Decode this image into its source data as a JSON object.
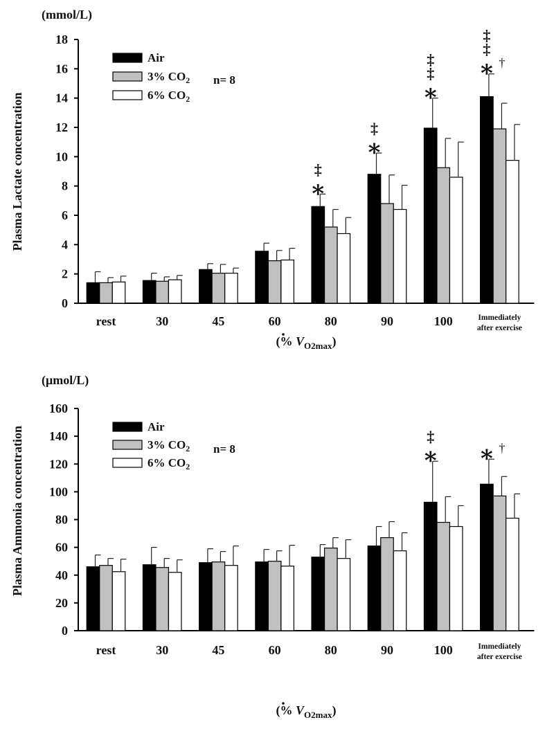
{
  "colors": {
    "air": "#000000",
    "co2_3": "#c0c0c0",
    "co2_6": "#ffffff",
    "axis": "#000000"
  },
  "chart_data": [
    {
      "type": "bar",
      "unit_label": "(mmol/L)",
      "ylabel": "Plasma Lactate concentration",
      "xlabel_prefix": "(% ",
      "xlabel_v": "V",
      "xlabel_sub": "O2max",
      "xlabel_suffix": ")",
      "categories": [
        "rest",
        "30",
        "45",
        "60",
        "80",
        "90",
        "100",
        "Immediately after exercise"
      ],
      "category_lines": [
        [
          "rest"
        ],
        [
          "30"
        ],
        [
          "45"
        ],
        [
          "60"
        ],
        [
          "80"
        ],
        [
          "90"
        ],
        [
          "100"
        ],
        [
          "Immediately",
          "after exercise"
        ]
      ],
      "ylim": [
        0,
        18
      ],
      "yticks": [
        "0",
        "2",
        "4",
        "6",
        "8",
        "10",
        "12",
        "14",
        "16",
        "18"
      ],
      "n_label": "n= 8",
      "series": [
        {
          "name": "Air",
          "legend_main": "Air",
          "legend_sub": "",
          "values": [
            1.4,
            1.55,
            2.3,
            3.55,
            6.6,
            8.8,
            11.95,
            14.1
          ],
          "errors": [
            0.75,
            0.5,
            0.4,
            0.55,
            0.85,
            1.45,
            2.05,
            1.55
          ]
        },
        {
          "name": "3% CO2",
          "legend_main": "3% CO",
          "legend_sub": "2",
          "values": [
            1.4,
            1.5,
            2.05,
            2.9,
            5.2,
            6.8,
            9.25,
            11.9
          ],
          "errors": [
            0.35,
            0.3,
            0.6,
            0.7,
            1.2,
            1.95,
            2.0,
            1.75
          ]
        },
        {
          "name": "6% CO2",
          "legend_main": "6% CO",
          "legend_sub": "2",
          "values": [
            1.45,
            1.6,
            2.05,
            2.95,
            4.75,
            6.4,
            8.6,
            9.75
          ],
          "errors": [
            0.4,
            0.3,
            0.35,
            0.8,
            1.1,
            1.65,
            2.4,
            2.45
          ]
        }
      ],
      "annotations": [
        {
          "category": "80",
          "series": "Air",
          "lines": [
            "‡",
            "∗"
          ]
        },
        {
          "category": "90",
          "series": "Air",
          "lines": [
            "‡",
            "∗"
          ]
        },
        {
          "category": "100",
          "series": "Air",
          "lines": [
            "‡",
            "‡",
            "∗"
          ]
        },
        {
          "category": "Immediately after exercise",
          "series": "Air",
          "lines": [
            "‡",
            "‡",
            "∗"
          ],
          "extra": "†"
        }
      ]
    },
    {
      "type": "bar",
      "unit_label": "(μmol/L)",
      "ylabel": "Plasma Ammonia concentration",
      "xlabel_prefix": "(% ",
      "xlabel_v": "V",
      "xlabel_sub": "O2max",
      "xlabel_suffix": ")",
      "categories": [
        "rest",
        "30",
        "45",
        "60",
        "80",
        "90",
        "100",
        "Immediately after exercise"
      ],
      "category_lines": [
        [
          "rest"
        ],
        [
          "30"
        ],
        [
          "45"
        ],
        [
          "60"
        ],
        [
          "80"
        ],
        [
          "90"
        ],
        [
          "100"
        ],
        [
          "Immediately",
          "after exercise"
        ]
      ],
      "ylim": [
        0,
        160
      ],
      "yticks": [
        "0",
        "20",
        "40",
        "60",
        "80",
        "100",
        "120",
        "140",
        "160"
      ],
      "n_label": "n= 8",
      "series": [
        {
          "name": "Air",
          "legend_main": "Air",
          "legend_sub": "",
          "values": [
            46,
            47.5,
            49,
            49.5,
            53,
            61,
            92.5,
            105.5
          ],
          "errors": [
            8.5,
            12.5,
            10,
            9,
            9,
            14,
            29.5,
            18
          ]
        },
        {
          "name": "3% CO2",
          "legend_main": "3% CO",
          "legend_sub": "2",
          "values": [
            47,
            45.5,
            49.5,
            50,
            59.5,
            67,
            78,
            97
          ],
          "errors": [
            5,
            6.5,
            7.5,
            7.5,
            7.5,
            11.5,
            18.5,
            14
          ]
        },
        {
          "name": "6% CO2",
          "legend_main": "6% CO",
          "legend_sub": "2",
          "values": [
            42.5,
            42,
            47,
            46.5,
            52,
            57.5,
            75,
            81
          ],
          "errors": [
            9,
            9,
            14,
            15,
            13.5,
            13,
            15,
            17.5
          ]
        }
      ],
      "annotations": [
        {
          "category": "100",
          "series": "Air",
          "lines": [
            "‡",
            "∗"
          ]
        },
        {
          "category": "Immediately after exercise",
          "series": "Air",
          "lines": [
            "∗"
          ],
          "extra": "†"
        }
      ]
    }
  ]
}
